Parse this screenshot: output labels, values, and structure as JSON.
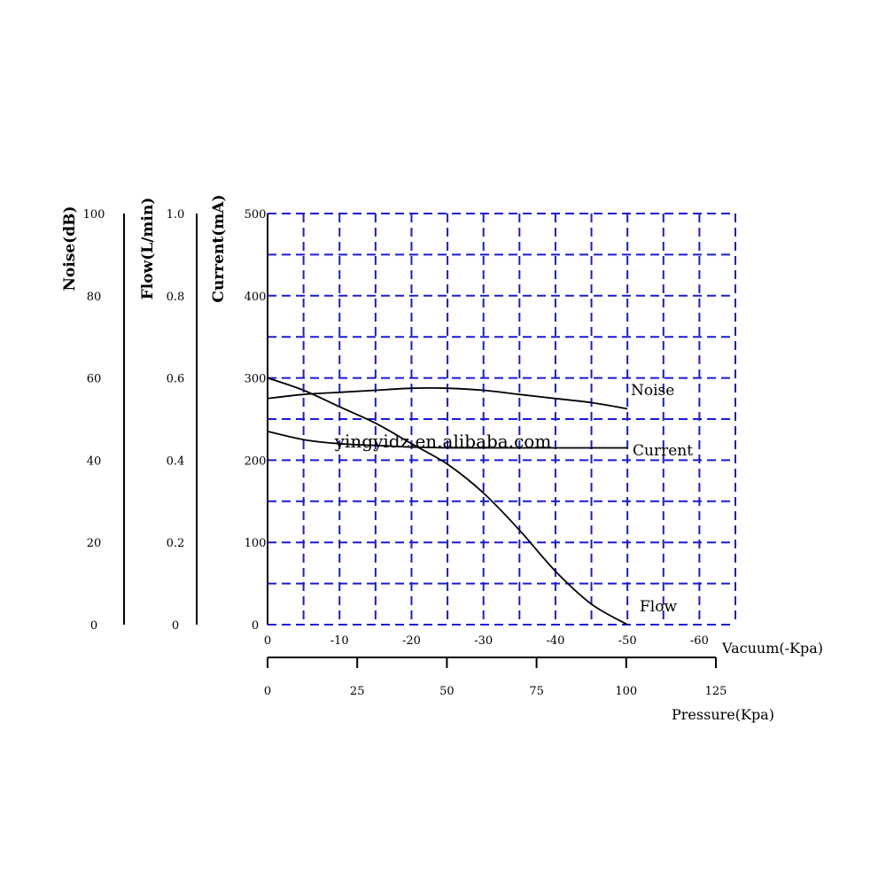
{
  "watermark": "yingyidz.en.alibaba.com",
  "chart_data": {
    "type": "line",
    "title": "",
    "grid": true,
    "grid_color": "#1a1ad6",
    "line_color": "#000000",
    "x_primary": {
      "label": "Vacuum(-Kpa)",
      "ticks": [
        "0",
        "-10",
        "-20",
        "-30",
        "-40",
        "-50",
        "-60"
      ],
      "range": [
        0,
        -65
      ]
    },
    "x_secondary": {
      "label": "Pressure(Kpa)",
      "ticks": [
        "0",
        "25",
        "50",
        "75",
        "100",
        "125"
      ],
      "range": [
        0,
        125
      ]
    },
    "y_axes": [
      {
        "id": "noise",
        "label": "Noise(dB)",
        "ticks": [
          "0",
          "20",
          "40",
          "60",
          "80",
          "100"
        ],
        "range": [
          0,
          100
        ]
      },
      {
        "id": "flow",
        "label": "Flow(L/min)",
        "ticks": [
          "0",
          "0.2",
          "0.4",
          "0.6",
          "0.8",
          "1.0"
        ],
        "range": [
          0,
          1.0
        ]
      },
      {
        "id": "current",
        "label": "Current(mA)",
        "ticks": [
          "0",
          "100",
          "200",
          "300",
          "400",
          "500"
        ],
        "range": [
          0,
          500
        ]
      }
    ],
    "series": [
      {
        "name": "Noise",
        "axis": "noise",
        "x": [
          0,
          -5,
          -10,
          -15,
          -20,
          -25,
          -30,
          -35,
          -40,
          -45,
          -50
        ],
        "y": [
          55,
          56,
          56.5,
          57,
          57.5,
          57.5,
          57,
          56,
          55,
          54,
          52.5
        ]
      },
      {
        "name": "Current",
        "axis": "current",
        "x": [
          0,
          -5,
          -10,
          -15,
          -20,
          -25,
          -30,
          -35,
          -40,
          -45,
          -50
        ],
        "y": [
          235,
          225,
          220,
          218,
          216,
          215,
          215,
          215,
          215,
          215,
          215
        ]
      },
      {
        "name": "Flow",
        "axis": "flow",
        "x": [
          0,
          -5,
          -10,
          -15,
          -20,
          -25,
          -30,
          -35,
          -40,
          -45,
          -50
        ],
        "y": [
          0.6,
          0.57,
          0.53,
          0.49,
          0.44,
          0.39,
          0.32,
          0.23,
          0.13,
          0.05,
          0
        ]
      }
    ]
  }
}
